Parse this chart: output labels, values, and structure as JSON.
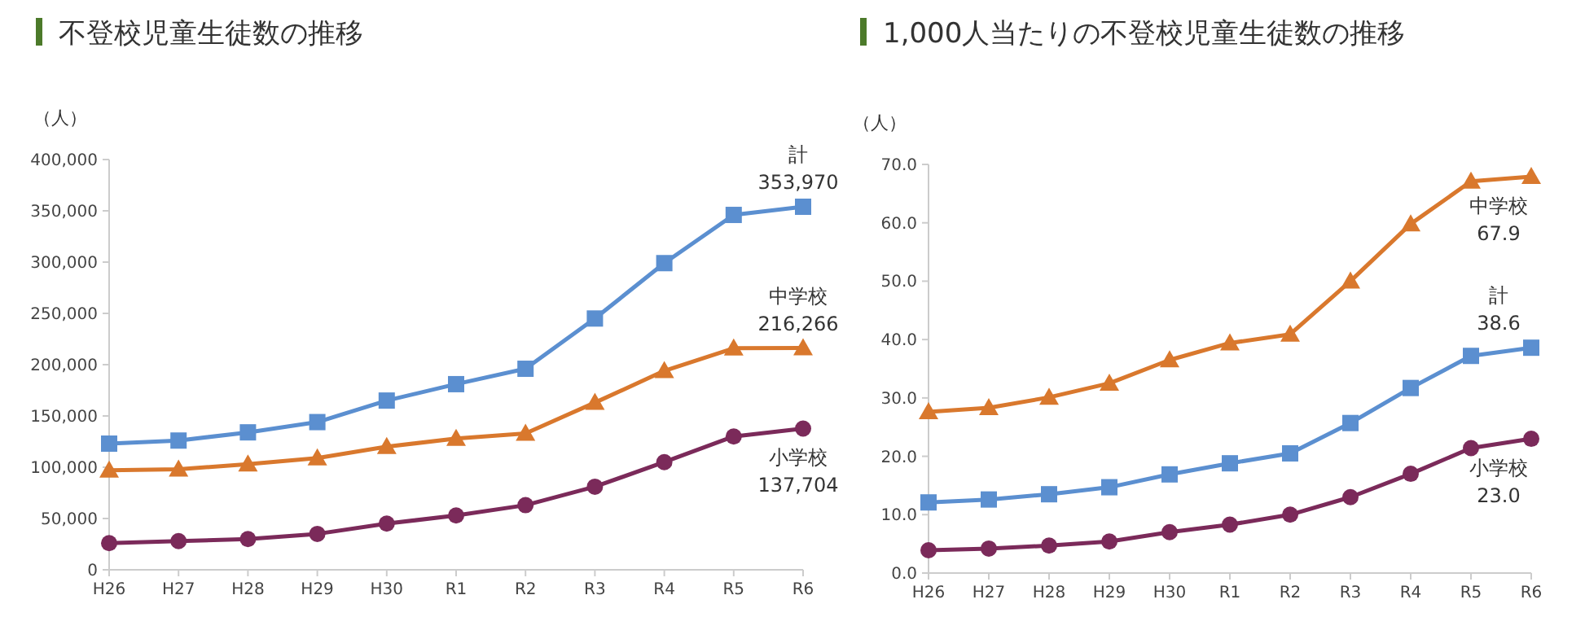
{
  "chart_data": [
    {
      "type": "line",
      "title": "不登校児童生徒数の推移",
      "ylabel": "（人）",
      "categories": [
        "H26",
        "H27",
        "H28",
        "H29",
        "H30",
        "R1",
        "R2",
        "R3",
        "R4",
        "R5",
        "R6"
      ],
      "ylim": [
        0,
        400000
      ],
      "yticks": [
        {
          "value": 0,
          "label": "0"
        },
        {
          "value": 50000,
          "label": "50,000"
        },
        {
          "value": 100000,
          "label": "100,000"
        },
        {
          "value": 150000,
          "label": "150,000"
        },
        {
          "value": 200000,
          "label": "200,000"
        },
        {
          "value": 250000,
          "label": "250,000"
        },
        {
          "value": 300000,
          "label": "300,000"
        },
        {
          "value": 350000,
          "label": "350,000"
        },
        {
          "value": 400000,
          "label": "400,000"
        }
      ],
      "grid": false,
      "series": [
        {
          "name": "計",
          "color": "#5b8fd0",
          "marker": "square",
          "values": [
            123000,
            126000,
            134000,
            144000,
            165000,
            181000,
            196000,
            245000,
            299000,
            346000,
            353970
          ],
          "value_labels": [
            null,
            null,
            null,
            null,
            null,
            null,
            null,
            null,
            null,
            null,
            "353,970"
          ]
        },
        {
          "name": "中学校",
          "color": "#d9782d",
          "marker": "triangle",
          "values": [
            97000,
            98000,
            103000,
            109000,
            120000,
            128000,
            133000,
            163000,
            194000,
            216000,
            216266
          ],
          "value_labels": [
            null,
            null,
            null,
            null,
            null,
            null,
            null,
            null,
            null,
            null,
            "216,266"
          ]
        },
        {
          "name": "小学校",
          "color": "#7b2a5a",
          "marker": "circle",
          "values": [
            26000,
            28000,
            30000,
            35000,
            45000,
            53000,
            63000,
            81000,
            105000,
            130000,
            137704
          ],
          "value_labels": [
            null,
            null,
            null,
            null,
            null,
            null,
            null,
            null,
            null,
            null,
            "137,704"
          ]
        }
      ]
    },
    {
      "type": "line",
      "title": "1,000人当たりの不登校児童生徒数の推移",
      "ylabel": "（人）",
      "categories": [
        "H26",
        "H27",
        "H28",
        "H29",
        "H30",
        "R1",
        "R2",
        "R3",
        "R4",
        "R5",
        "R6"
      ],
      "ylim": [
        0,
        70
      ],
      "yticks": [
        {
          "value": 0,
          "label": "0.0"
        },
        {
          "value": 10,
          "label": "10.0"
        },
        {
          "value": 20,
          "label": "20.0"
        },
        {
          "value": 30,
          "label": "30.0"
        },
        {
          "value": 40,
          "label": "40.0"
        },
        {
          "value": 50,
          "label": "50.0"
        },
        {
          "value": 60,
          "label": "60.0"
        },
        {
          "value": 70,
          "label": "70.0"
        }
      ],
      "grid": false,
      "series": [
        {
          "name": "中学校",
          "color": "#d9782d",
          "marker": "triangle",
          "values": [
            27.6,
            28.3,
            30.1,
            32.5,
            36.5,
            39.4,
            40.9,
            50.0,
            59.8,
            67.1,
            67.9
          ],
          "value_labels": [
            null,
            null,
            null,
            null,
            null,
            null,
            null,
            null,
            null,
            null,
            "67.9"
          ]
        },
        {
          "name": "計",
          "color": "#5b8fd0",
          "marker": "square",
          "values": [
            12.1,
            12.6,
            13.5,
            14.7,
            16.9,
            18.8,
            20.5,
            25.7,
            31.7,
            37.2,
            38.6
          ],
          "value_labels": [
            null,
            null,
            null,
            null,
            null,
            null,
            null,
            null,
            null,
            null,
            "38.6"
          ]
        },
        {
          "name": "小学校",
          "color": "#7b2a5a",
          "marker": "circle",
          "values": [
            3.9,
            4.2,
            4.7,
            5.4,
            7.0,
            8.3,
            10.0,
            13.0,
            17.0,
            21.4,
            23.0
          ],
          "value_labels": [
            null,
            null,
            null,
            null,
            null,
            null,
            null,
            null,
            null,
            null,
            "23.0"
          ]
        }
      ]
    }
  ]
}
